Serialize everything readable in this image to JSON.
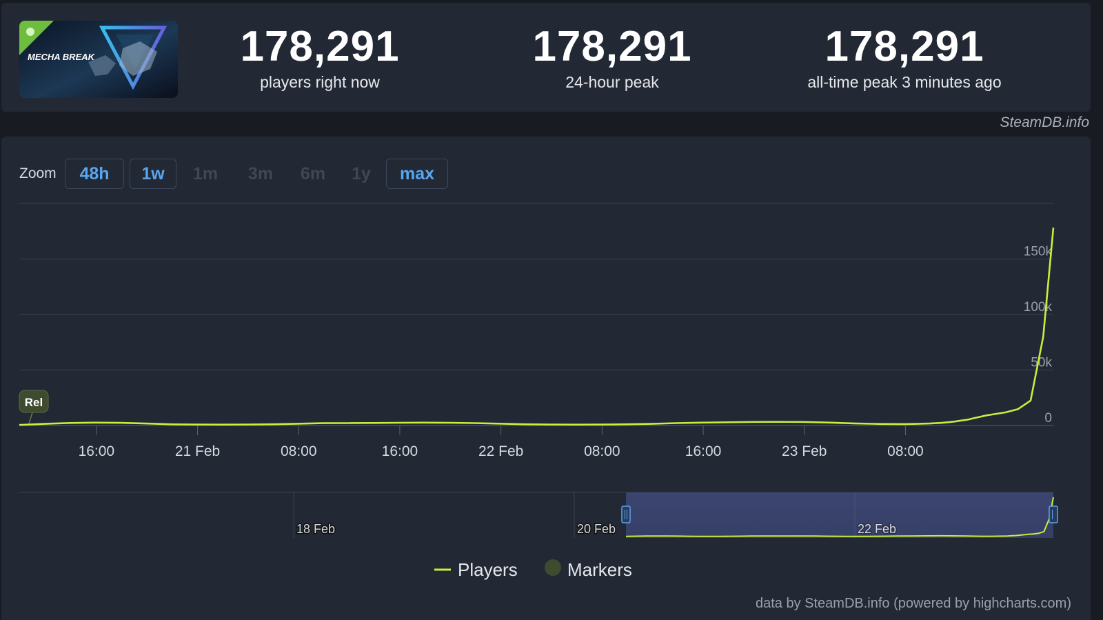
{
  "game": {
    "logo_text": "MECHA BREAK"
  },
  "stats": [
    {
      "value": "178,291",
      "label": "players right now"
    },
    {
      "value": "178,291",
      "label": "24-hour peak"
    },
    {
      "value": "178,291",
      "label": "all-time peak 3 minutes ago"
    }
  ],
  "credit_top": "SteamDB.info",
  "zoom": {
    "label": "Zoom",
    "options": [
      {
        "label": "48h",
        "active": true
      },
      {
        "label": "1w",
        "active": true
      },
      {
        "label": "1m",
        "active": false
      },
      {
        "label": "3m",
        "active": false
      },
      {
        "label": "6m",
        "active": false
      },
      {
        "label": "1y",
        "active": false
      },
      {
        "label": "max",
        "active": true
      }
    ]
  },
  "chart_data": {
    "type": "line",
    "series": [
      {
        "name": "Players",
        "color": "#c5f03c",
        "x_hours": [
          0,
          2,
          4,
          6,
          8,
          10,
          12,
          14,
          16,
          18,
          20,
          22,
          24,
          26,
          28,
          30,
          32,
          34,
          36,
          38,
          40,
          42,
          44,
          46,
          48,
          50,
          52,
          54,
          56,
          58,
          60,
          62,
          64,
          66,
          68,
          70,
          71,
          72,
          73,
          73.5,
          74,
          74.5,
          75,
          75.5,
          76,
          76.5,
          77,
          78,
          79,
          80,
          81,
          81.8
        ],
        "values": [
          500,
          1500,
          2300,
          2600,
          2400,
          1800,
          1100,
          900,
          800,
          900,
          1100,
          1600,
          2100,
          2200,
          2300,
          2500,
          2600,
          2500,
          2200,
          1700,
          1100,
          900,
          800,
          900,
          1100,
          1500,
          2200,
          2600,
          2900,
          3200,
          3300,
          3200,
          2700,
          1900,
          1400,
          1300,
          1500,
          1800,
          2400,
          3000,
          3600,
          4500,
          5200,
          6600,
          7800,
          9100,
          10000,
          11800,
          14800,
          22500,
          80000,
          178291
        ]
      }
    ],
    "x_axis": {
      "tick_labels": [
        "16:00",
        "21 Feb",
        "08:00",
        "16:00",
        "22 Feb",
        "08:00",
        "16:00",
        "23 Feb",
        "08:00"
      ]
    },
    "y_axis": {
      "tick_labels": [
        "0",
        "50k",
        "100k",
        "150k"
      ],
      "range": [
        0,
        200000
      ]
    },
    "marker": {
      "label": "Rel"
    },
    "navigator": {
      "tick_labels": [
        "18 Feb",
        "20 Feb",
        "22 Feb"
      ]
    },
    "legend": {
      "position": "bottom-center",
      "items": [
        {
          "label": "Players",
          "color": "#c5f03c"
        },
        {
          "label": "Markers",
          "color": "#3f4b2f"
        }
      ]
    },
    "grid": true
  },
  "credit_bottom": "data by SteamDB.info (powered by highcharts.com)"
}
